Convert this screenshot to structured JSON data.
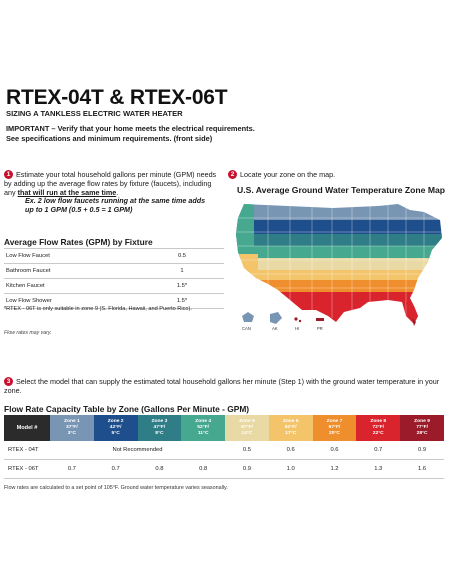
{
  "header": {
    "title": "RTEX-04T & RTEX-06T",
    "subtitle": "SIZING A TANKLESS ELECTRIC WATER HEATER",
    "important_line1": "IMPORTANT – Verify that your home meets the electrical requirements.",
    "important_line2": "See specifications and minimum requirements. (front side)"
  },
  "colors": {
    "accent_red": "#c8102e",
    "header_dark": "#2b2b2b"
  },
  "step1": {
    "number": "1",
    "text_a": "Estimate your total household gallons per minute (GPM) needs by adding up the average flow rates by fixture (faucets), including any ",
    "text_b": "that will run at the same time",
    "text_c": ".",
    "example_line1": "Ex. 2 low flow faucets running at the same time adds",
    "example_line2": "up to 1 GPM (0.5 + 0.5 = 1 GPM)"
  },
  "fixtures": {
    "title": "Average Flow Rates (GPM) by Fixture",
    "rows": [
      {
        "name": "Low Flow Faucet",
        "value": "0.5"
      },
      {
        "name": "Bathroom Faucet",
        "value": "1"
      },
      {
        "name": "Kitchen Faucet",
        "value": "1.5*"
      },
      {
        "name": "Low Flow Shower",
        "value": "1.5*"
      }
    ],
    "note": "*RTEX - 06T is only suitable in zone 9 (S. Florida, Hawaii, and Puerto Rico).",
    "footnote": "Flow rates may vary."
  },
  "step2": {
    "number": "2",
    "text": "Locate your zone on the map.",
    "map_title": "U.S. Average Ground Water Temperature Zone Map",
    "insets": [
      "CAN",
      "AK",
      "HI",
      "PR"
    ]
  },
  "step3": {
    "number": "3",
    "text": "Select the model that can supply the estimated total household gallons her minute (Step 1) with the ground water temperature in your zone."
  },
  "rate_table": {
    "title": "Flow Rate Capacity Table by Zone (Gallons Per Minute - GPM)",
    "model_header": "Model #",
    "zones": [
      {
        "name": "Zone 1",
        "f": "37°F/",
        "c": "3°C",
        "color": "#7896b3"
      },
      {
        "name": "Zone 2",
        "f": "42°F/",
        "c": "5°C",
        "color": "#1f4e8c"
      },
      {
        "name": "Zone 3",
        "f": "47°F/",
        "c": "8°C",
        "color": "#2f7d86"
      },
      {
        "name": "Zone 4",
        "f": "52°F/",
        "c": "11°C",
        "color": "#46a88e"
      },
      {
        "name": "Zone 5",
        "f": "57°F/",
        "c": "14°C",
        "color": "#e9d9a4"
      },
      {
        "name": "Zone 6",
        "f": "62°F/",
        "c": "17°C",
        "color": "#f3c46a"
      },
      {
        "name": "Zone 7",
        "f": "67°F/",
        "c": "20°C",
        "color": "#ef8e2c"
      },
      {
        "name": "Zone 8",
        "f": "72°F/",
        "c": "22°C",
        "color": "#d9232d"
      },
      {
        "name": "Zone 9",
        "f": "77°F/",
        "c": "28°C",
        "color": "#9c1b2b"
      }
    ],
    "rows": [
      {
        "model": "RTEX - 04T",
        "not_recommended": "Not Recommended",
        "values": [
          "0.5",
          "0.6",
          "0.6",
          "0.7",
          "0.9"
        ]
      },
      {
        "model": "RTEX - 06T",
        "values": [
          "0.7",
          "0.7",
          "0.8",
          "0.8",
          "0.9",
          "1.0",
          "1.2",
          "1.3",
          "1.6"
        ]
      }
    ],
    "footnote": "Flow rates are calculated to a set point of 105°F. Ground water temperature varies seasonally."
  }
}
